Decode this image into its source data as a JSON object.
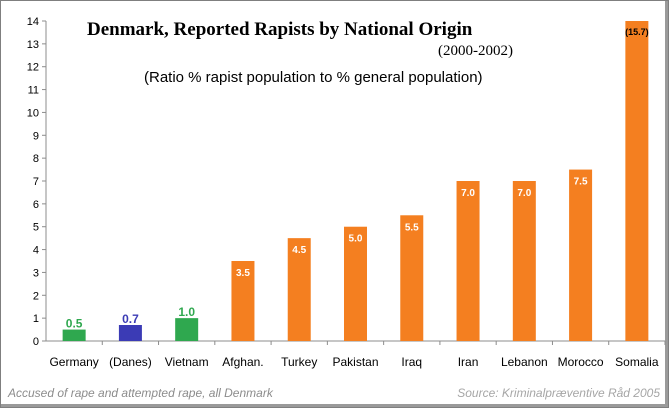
{
  "chart_data": {
    "type": "bar",
    "title": "Denmark, Reported Rapists by National Origin",
    "years": "(2000-2002)",
    "subtitle": "(Ratio % rapist population to % general population)",
    "categories": [
      "Germany",
      "(Danes)",
      "Vietnam",
      "Afghan.",
      "Turkey",
      "Pakistan",
      "Iraq",
      "Iran",
      "Lebanon",
      "Morocco",
      "Somalia"
    ],
    "values": [
      0.5,
      0.7,
      1.0,
      3.5,
      4.5,
      5.0,
      5.5,
      7.0,
      7.0,
      7.5,
      15.7
    ],
    "data_labels": [
      "0.5",
      "0.7",
      "1.0",
      "3.5",
      "4.5",
      "5.0",
      "5.5",
      "7.0",
      "7.0",
      "7.5",
      "(15.7)"
    ],
    "bar_colors": [
      "#2fa84f",
      "#3b3bb5",
      "#2fa84f",
      "#f47f20",
      "#f47f20",
      "#f47f20",
      "#f47f20",
      "#f47f20",
      "#f47f20",
      "#f47f20",
      "#f47f20"
    ],
    "ylim": [
      0,
      14
    ],
    "yticks": [
      0,
      1,
      2,
      3,
      4,
      5,
      6,
      7,
      8,
      9,
      10,
      11,
      12,
      13,
      14
    ],
    "grid": false,
    "legend": "none"
  },
  "footer": {
    "left": "Accused of rape and attempted rape, all Denmark",
    "right": "Source: Kriminalpræventive Råd 2005"
  }
}
